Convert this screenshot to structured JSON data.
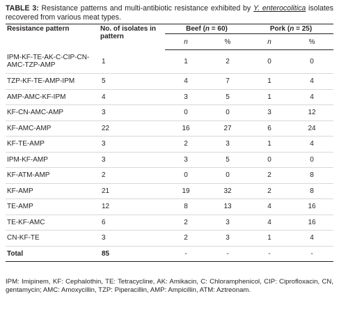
{
  "caption": {
    "label": "TABLE 3:",
    "text_before": " Resistance patterns and multi-antibiotic resistance exhibited by ",
    "organism": "Y. enterocolitica",
    "text_after": " isolates recovered from various meat types."
  },
  "table": {
    "headers": {
      "pattern": "Resistance pattern",
      "isolates": "No. of isolates in pattern",
      "beef": "Beef (n = 60)",
      "pork": "Pork (n = 25)",
      "n": "n",
      "pct": "%"
    },
    "rows": [
      {
        "pattern": "IPM-KF-TE-AK-C-CIP-CN-AMC-TZP-AMP",
        "isolates": "1",
        "beef_n": "1",
        "beef_pct": "2",
        "pork_n": "0",
        "pork_pct": "0"
      },
      {
        "pattern": "TZP-KF-TE-AMP-IPM",
        "isolates": "5",
        "beef_n": "4",
        "beef_pct": "7",
        "pork_n": "1",
        "pork_pct": "4"
      },
      {
        "pattern": "AMP-AMC-KF-IPM",
        "isolates": "4",
        "beef_n": "3",
        "beef_pct": "5",
        "pork_n": "1",
        "pork_pct": "4"
      },
      {
        "pattern": "KF-CN-AMC-AMP",
        "isolates": "3",
        "beef_n": "0",
        "beef_pct": "0",
        "pork_n": "3",
        "pork_pct": "12"
      },
      {
        "pattern": "KF-AMC-AMP",
        "isolates": "22",
        "beef_n": "16",
        "beef_pct": "27",
        "pork_n": "6",
        "pork_pct": "24"
      },
      {
        "pattern": "KF-TE-AMP",
        "isolates": "3",
        "beef_n": "2",
        "beef_pct": "3",
        "pork_n": "1",
        "pork_pct": "4"
      },
      {
        "pattern": "IPM-KF-AMP",
        "isolates": "3",
        "beef_n": "3",
        "beef_pct": "5",
        "pork_n": "0",
        "pork_pct": "0"
      },
      {
        "pattern": "KF-ATM-AMP",
        "isolates": "2",
        "beef_n": "0",
        "beef_pct": "0",
        "pork_n": "2",
        "pork_pct": "8"
      },
      {
        "pattern": "KF-AMP",
        "isolates": "21",
        "beef_n": "19",
        "beef_pct": "32",
        "pork_n": "2",
        "pork_pct": "8"
      },
      {
        "pattern": "TE-AMP",
        "isolates": "12",
        "beef_n": "8",
        "beef_pct": "13",
        "pork_n": "4",
        "pork_pct": "16"
      },
      {
        "pattern": "TE-KF-AMC",
        "isolates": "6",
        "beef_n": "2",
        "beef_pct": "3",
        "pork_n": "4",
        "pork_pct": "16"
      },
      {
        "pattern": "CN-KF-TE",
        "isolates": "3",
        "beef_n": "2",
        "beef_pct": "3",
        "pork_n": "1",
        "pork_pct": "4"
      }
    ],
    "total": {
      "pattern": "Total",
      "isolates": "85",
      "beef_n": "-",
      "beef_pct": "-",
      "pork_n": "-",
      "pork_pct": "-"
    }
  },
  "footnote": "IPM: Imipinem, KF: Cephalothin, TE: Tetracycline, AK: Amikacin, C: Chloramphenicol, CIP: Ciprofloxacin, CN, gentamycin; AMC: Amoxycillin, TZP: Piperacillin, AMP: Ampicillin, ATM: Aztreonam."
}
